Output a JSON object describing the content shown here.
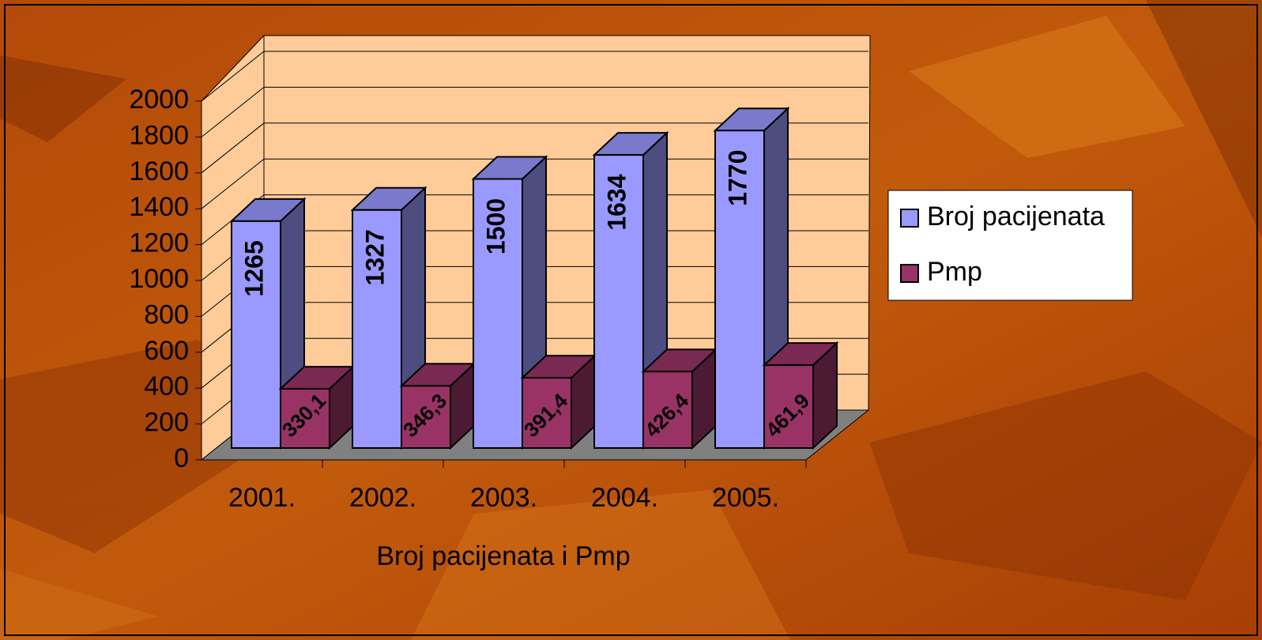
{
  "chart_data": {
    "type": "bar3d",
    "x_label": "Broj pacijenata i Pmp",
    "categories": [
      "2001.",
      "2002.",
      "2003.",
      "2004.",
      "2005."
    ],
    "series": [
      {
        "name": "Broj pacijenata",
        "color": "#9999ff",
        "values": [
          1265,
          1327,
          1500,
          1634,
          1770
        ]
      },
      {
        "name": "Pmp",
        "color": "#993366",
        "values": [
          330.1,
          346.3,
          391.4,
          426.4,
          461.9
        ],
        "value_labels": [
          "330,1",
          "346,3",
          "391,4",
          "426,4",
          "461,9"
        ]
      }
    ],
    "ylim": [
      0,
      2000
    ],
    "yticks": [
      0,
      200,
      400,
      600,
      800,
      1000,
      1200,
      1400,
      1600,
      1800,
      2000
    ],
    "grid": true,
    "legend": "right"
  }
}
